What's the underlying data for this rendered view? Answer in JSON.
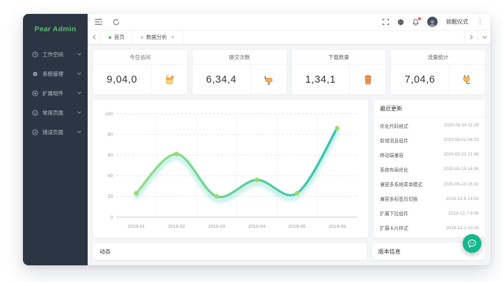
{
  "app": {
    "logo_text": "Pear Admin"
  },
  "sidebar": {
    "items": [
      {
        "label": "工作空间",
        "icon": "workspace-icon"
      },
      {
        "label": "系统管理",
        "icon": "system-icon"
      },
      {
        "label": "扩展组件",
        "icon": "extension-icon"
      },
      {
        "label": "常用页面",
        "icon": "pages-icon"
      },
      {
        "label": "错误页面",
        "icon": "error-icon"
      }
    ]
  },
  "header": {
    "username": "就眠仪式"
  },
  "tabbar": {
    "tabs": [
      {
        "label": "首页",
        "active": true,
        "closable": false
      },
      {
        "label": "数据分析",
        "active": false,
        "closable": true,
        "close_glyph": "×"
      }
    ]
  },
  "stats": [
    {
      "title": "今日访问",
      "value": "9,04,0",
      "icon": "paint-bucket-icon"
    },
    {
      "title": "提交次数",
      "value": "6,34,4",
      "icon": "paint-roller-icon"
    },
    {
      "title": "下载数量",
      "value": "1,34,1",
      "icon": "trash-icon"
    },
    {
      "title": "流量统计",
      "value": "7,04,6",
      "icon": "plug-icon"
    }
  ],
  "chart_data": {
    "type": "line",
    "x": [
      "2019-01",
      "2019-02",
      "2019-03",
      "2019-04",
      "2019-05",
      "2019-06"
    ],
    "values": [
      23,
      61,
      20,
      36,
      23,
      86
    ],
    "ylim": [
      0,
      100
    ],
    "yticks": [
      0,
      20,
      40,
      60,
      80,
      100
    ],
    "grid": "dashed-horizontal",
    "smooth": true,
    "line_gradient": [
      "#95de7e",
      "#2fc4b2"
    ],
    "point_color": "#9bdb6c",
    "glow_color": "#2fc4b2"
  },
  "recent": {
    "title": "最近更新",
    "items": [
      {
        "label": "优化代码格式",
        "time": "2020-06-04 11:28"
      },
      {
        "label": "新增消息组件",
        "time": "2020-06-01 04:23"
      },
      {
        "label": "移动端兼容",
        "time": "2020-05-22 21:38"
      },
      {
        "label": "系统布局优化",
        "time": "2020-05-15 14:26"
      },
      {
        "label": "兼容多系统菜单模式",
        "time": "2020-05-13 16:32"
      },
      {
        "label": "兼容多标签页切换",
        "time": "2019-12-9 14:58"
      },
      {
        "label": "扩展下拉组件",
        "time": "2019-12-7 9:06"
      },
      {
        "label": "扩展卡片样式",
        "time": "2019-12-1 10:26"
      }
    ]
  },
  "bottom": {
    "activity_title": "动态",
    "version_title": "版本信息"
  },
  "colors": {
    "accent_green": "#5FB878",
    "sidebar_bg": "#2b3543",
    "float_button": "#14b88a",
    "notice_dot": "#ff4d4f"
  }
}
